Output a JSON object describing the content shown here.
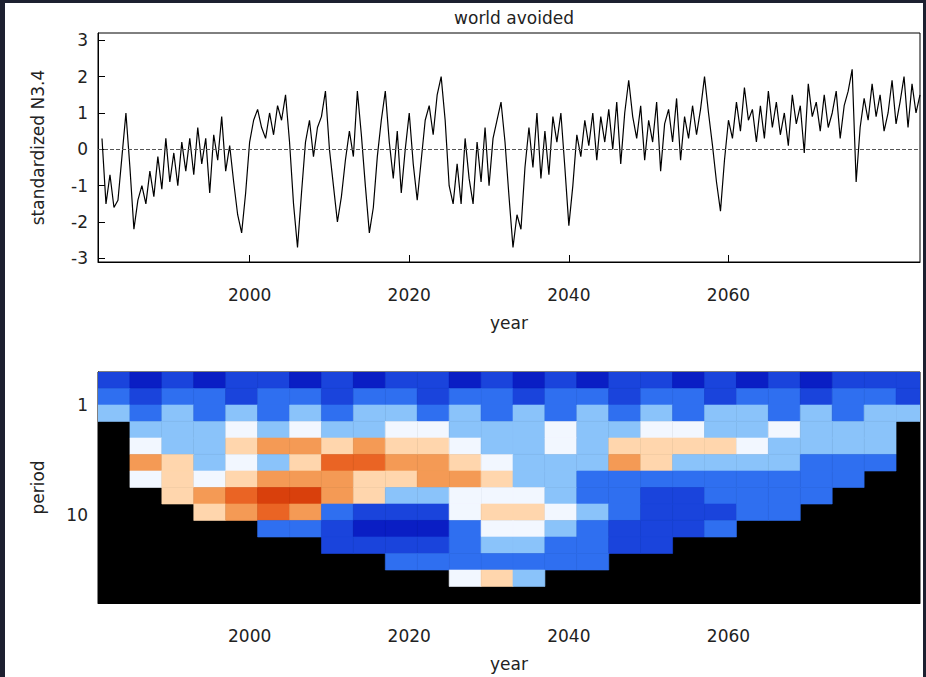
{
  "chart_data": [
    {
      "type": "line",
      "title": "world avoided",
      "x_label": "year",
      "y_label": "standardized N3.4",
      "color": "#000000",
      "line_style": "solid",
      "xlim": [
        1981,
        2084
      ],
      "xticks": [
        2000,
        2020,
        2040,
        2060
      ],
      "ylim": [
        -3.1,
        3.2
      ],
      "yticks": [
        -3,
        -2,
        -1,
        0,
        1,
        2,
        3
      ],
      "hline": 0,
      "x": [
        1981.5,
        1982,
        1982.5,
        1983,
        1983.5,
        1984,
        1984.5,
        1985,
        1985.5,
        1986,
        1986.5,
        1987,
        1987.5,
        1988,
        1988.5,
        1989,
        1989.5,
        1990,
        1990.5,
        1991,
        1991.5,
        1992,
        1992.5,
        1993,
        1993.5,
        1994,
        1994.5,
        1995,
        1995.5,
        1996,
        1996.5,
        1997,
        1997.5,
        1998,
        1998.5,
        1999,
        1999.5,
        2000,
        2000.5,
        2001,
        2001.5,
        2002,
        2002.5,
        2003,
        2003.5,
        2004,
        2004.5,
        2005,
        2005.5,
        2006,
        2006.5,
        2007,
        2007.5,
        2008,
        2008.5,
        2009,
        2009.5,
        2010,
        2010.5,
        2011,
        2011.5,
        2012,
        2012.5,
        2013,
        2013.5,
        2014,
        2014.5,
        2015,
        2015.5,
        2016,
        2016.5,
        2017,
        2017.5,
        2018,
        2018.5,
        2019,
        2019.5,
        2020,
        2020.5,
        2021,
        2021.5,
        2022,
        2022.5,
        2023,
        2023.5,
        2024,
        2024.5,
        2025,
        2025.5,
        2026,
        2026.5,
        2027,
        2027.5,
        2028,
        2028.5,
        2029,
        2029.5,
        2030,
        2030.5,
        2031,
        2031.5,
        2032,
        2032.5,
        2033,
        2033.5,
        2034,
        2034.5,
        2035,
        2035.5,
        2036,
        2036.5,
        2037,
        2037.5,
        2038,
        2038.5,
        2039,
        2039.5,
        2040,
        2040.5,
        2041,
        2041.5,
        2042,
        2042.5,
        2043,
        2043.5,
        2044,
        2044.5,
        2045,
        2045.5,
        2046,
        2046.5,
        2047,
        2047.5,
        2048,
        2048.5,
        2049,
        2049.5,
        2050,
        2050.5,
        2051,
        2051.5,
        2052,
        2052.5,
        2053,
        2053.5,
        2054,
        2054.5,
        2055,
        2055.5,
        2056,
        2056.5,
        2057,
        2057.5,
        2058,
        2058.5,
        2059,
        2059.5,
        2060,
        2060.5,
        2061,
        2061.5,
        2062,
        2062.5,
        2063,
        2063.5,
        2064,
        2064.5,
        2065,
        2065.5,
        2066,
        2066.5,
        2067,
        2067.5,
        2068,
        2068.5,
        2069,
        2069.5,
        2070,
        2070.5,
        2071,
        2071.5,
        2072,
        2072.5,
        2073,
        2073.5,
        2074,
        2074.5,
        2075,
        2075.5,
        2076,
        2076.5,
        2077,
        2077.5,
        2078,
        2078.5,
        2079,
        2079.5,
        2080,
        2080.5,
        2081,
        2081.5,
        2082,
        2082.5,
        2083,
        2083.5,
        2084
      ],
      "values": [
        0.3,
        -1.5,
        -0.7,
        -1.6,
        -1.4,
        -0.2,
        1.0,
        -0.5,
        -2.2,
        -1.4,
        -1.0,
        -1.5,
        -0.6,
        -1.3,
        -0.2,
        -1.1,
        0.3,
        -0.9,
        -0.1,
        -1.0,
        0.2,
        -0.6,
        0.3,
        -0.7,
        0.6,
        -0.4,
        0.3,
        -1.2,
        0.4,
        -0.3,
        0.9,
        -0.6,
        0.1,
        -0.9,
        -1.8,
        -2.3,
        -1.2,
        0.2,
        0.8,
        1.1,
        0.6,
        0.3,
        1.0,
        0.4,
        1.2,
        0.8,
        1.5,
        0.2,
        -1.5,
        -2.7,
        -1.2,
        0.2,
        0.8,
        -0.2,
        0.6,
        0.9,
        1.6,
        0.0,
        -1.0,
        -2.0,
        -1.3,
        -0.3,
        0.5,
        -0.2,
        1.6,
        0.4,
        -1.0,
        -2.3,
        -1.6,
        -0.2,
        0.8,
        1.6,
        0.2,
        -0.8,
        0.5,
        -1.2,
        0.0,
        1.0,
        -0.4,
        -1.4,
        -0.3,
        0.8,
        1.2,
        0.4,
        1.5,
        2.0,
        0.8,
        -1.0,
        -1.5,
        -0.4,
        -1.5,
        0.3,
        -0.8,
        -1.5,
        0.2,
        -0.9,
        0.6,
        -1.0,
        0.3,
        0.8,
        1.3,
        0.2,
        -1.3,
        -2.7,
        -1.8,
        -2.2,
        -0.5,
        0.6,
        -0.5,
        1.0,
        -0.8,
        0.5,
        -0.7,
        0.9,
        0.2,
        1.0,
        -0.5,
        -2.1,
        -1.0,
        0.4,
        -0.2,
        0.8,
        0.1,
        1.0,
        -0.3,
        0.9,
        0.2,
        1.1,
        0.0,
        1.3,
        -0.4,
        1.0,
        1.9,
        0.9,
        0.3,
        1.2,
        -0.3,
        0.8,
        0.2,
        1.3,
        -0.6,
        0.7,
        1.1,
        0.2,
        1.4,
        -0.3,
        0.9,
        0.3,
        1.2,
        0.4,
        1.1,
        2.0,
        1.0,
        0.1,
        -0.9,
        -1.7,
        -0.3,
        0.8,
        0.3,
        1.3,
        0.5,
        1.7,
        0.8,
        1.1,
        0.2,
        1.2,
        0.3,
        1.6,
        0.6,
        1.3,
        0.4,
        1.0,
        0.1,
        1.5,
        0.7,
        1.2,
        -0.1,
        1.8,
        0.9,
        1.3,
        0.5,
        1.5,
        0.6,
        1.0,
        1.6,
        0.3,
        1.2,
        1.6,
        2.2,
        -0.9,
        0.6,
        1.4,
        0.8,
        1.8,
        0.9,
        1.5,
        0.5,
        1.0,
        1.9,
        0.7,
        1.3,
        2.0,
        0.6,
        1.8,
        1.0,
        1.5
      ]
    },
    {
      "type": "heatmap",
      "x_label": "year",
      "y_label": "period",
      "log": "y",
      "xlim": [
        1981,
        2084
      ],
      "xticks": [
        2000,
        2020,
        2040,
        2060
      ],
      "ylim": [
        0.5,
        64
      ],
      "yticks": [
        1,
        10
      ],
      "clim": [
        0,
        8
      ],
      "x_bins": [
        1981,
        1985,
        1989,
        1993,
        1997,
        2001,
        2005,
        2009,
        2013,
        2017,
        2021,
        2025,
        2029,
        2033,
        2037,
        2041,
        2045,
        2049,
        2053,
        2057,
        2061,
        2065,
        2069,
        2073,
        2077,
        2081,
        2085
      ],
      "y_bins": [
        0.5,
        0.707,
        1,
        1.414,
        2,
        2.828,
        4,
        5.657,
        8,
        11.31,
        16,
        22.63,
        32,
        45.25,
        64
      ],
      "cells": [
        [
          1,
          0,
          1,
          0,
          1,
          1,
          0,
          1,
          0,
          1,
          1,
          0,
          1,
          0,
          1,
          0,
          1,
          1,
          0,
          1,
          0,
          1,
          0,
          1,
          1,
          1
        ],
        [
          2,
          1,
          2,
          2,
          1,
          2,
          2,
          1,
          2,
          2,
          1,
          2,
          2,
          1,
          2,
          2,
          1,
          2,
          2,
          1,
          2,
          2,
          1,
          2,
          2,
          1
        ],
        [
          3,
          2,
          3,
          2,
          3,
          2,
          3,
          2,
          3,
          3,
          2,
          3,
          2,
          3,
          2,
          3,
          2,
          3,
          2,
          3,
          3,
          2,
          3,
          2,
          3,
          3
        ],
        [
          null,
          3,
          3,
          3,
          4,
          3,
          4,
          3,
          3,
          4,
          4,
          3,
          3,
          3,
          4,
          3,
          3,
          4,
          4,
          3,
          3,
          4,
          3,
          3,
          3,
          null
        ],
        [
          null,
          4,
          3,
          3,
          5,
          6,
          6,
          5,
          6,
          5,
          5,
          4,
          3,
          3,
          4,
          3,
          5,
          5,
          5,
          5,
          4,
          3,
          3,
          3,
          3,
          null
        ],
        [
          null,
          6,
          5,
          3,
          4,
          3,
          5,
          7,
          7,
          6,
          6,
          5,
          4,
          3,
          3,
          3,
          6,
          5,
          3,
          3,
          3,
          3,
          2,
          2,
          2,
          null
        ],
        [
          null,
          4,
          5,
          4,
          5,
          6,
          6,
          6,
          5,
          5,
          6,
          6,
          5,
          3,
          3,
          2,
          2,
          2,
          2,
          2,
          2,
          2,
          2,
          2,
          null,
          null
        ],
        [
          null,
          null,
          5,
          6,
          7,
          8,
          8,
          6,
          5,
          3,
          3,
          4,
          4,
          4,
          3,
          2,
          2,
          1,
          1,
          2,
          2,
          2,
          2,
          null,
          null,
          null
        ],
        [
          null,
          null,
          null,
          5,
          6,
          7,
          6,
          2,
          1,
          1,
          1,
          4,
          5,
          5,
          4,
          3,
          2,
          1,
          1,
          1,
          2,
          2,
          null,
          null,
          null,
          null
        ],
        [
          null,
          null,
          null,
          null,
          null,
          2,
          2,
          1,
          0,
          0,
          0,
          2,
          4,
          4,
          3,
          2,
          1,
          1,
          1,
          2,
          null,
          null,
          null,
          null,
          null,
          null
        ],
        [
          null,
          null,
          null,
          null,
          null,
          null,
          null,
          1,
          1,
          1,
          1,
          2,
          3,
          3,
          2,
          2,
          1,
          1,
          null,
          null,
          null,
          null,
          null,
          null,
          null,
          null
        ],
        [
          null,
          null,
          null,
          null,
          null,
          null,
          null,
          null,
          null,
          2,
          2,
          2,
          2,
          2,
          2,
          2,
          null,
          null,
          null,
          null,
          null,
          null,
          null,
          null,
          null,
          null
        ],
        [
          null,
          null,
          null,
          null,
          null,
          null,
          null,
          null,
          null,
          null,
          null,
          4,
          5,
          3,
          null,
          null,
          null,
          null,
          null,
          null,
          null,
          null,
          null,
          null,
          null,
          null
        ],
        [
          null,
          null,
          null,
          null,
          null,
          null,
          null,
          null,
          null,
          null,
          null,
          null,
          null,
          null,
          null,
          null,
          null,
          null,
          null,
          null,
          null,
          null,
          null,
          null,
          null,
          null
        ]
      ]
    }
  ]
}
